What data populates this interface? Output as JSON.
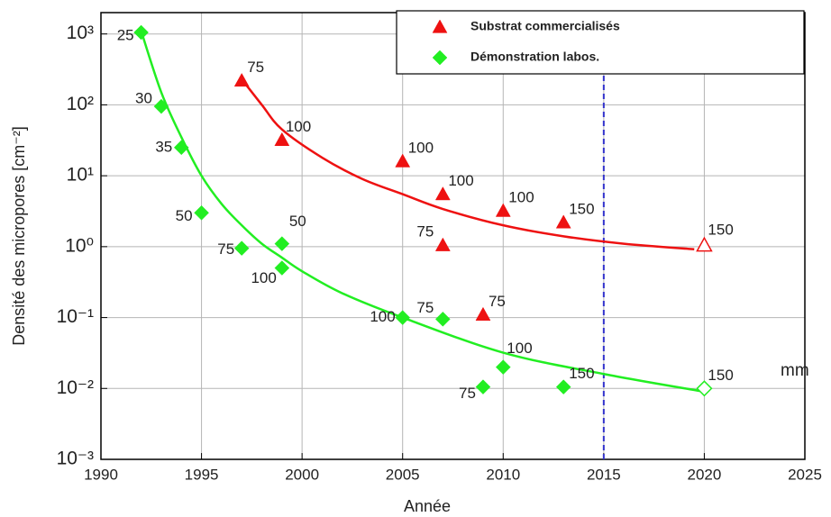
{
  "chart_data": {
    "type": "scatter",
    "x_label": "Année",
    "y_label": "Densité des micropores [cm⁻²]",
    "log_y": true,
    "grid": true,
    "legend": "top-right",
    "xlim": [
      1990,
      2025
    ],
    "ylim": [
      0.001,
      2000
    ],
    "xticks": [
      1990,
      1995,
      2000,
      2005,
      2010,
      2015,
      2020,
      2025
    ],
    "yticks": [
      {
        "value": 0.001,
        "label": "10⁻³"
      },
      {
        "value": 0.01,
        "label": "10⁻²"
      },
      {
        "value": 0.1,
        "label": "10⁻¹"
      },
      {
        "value": 1,
        "label": "10⁰"
      },
      {
        "value": 10,
        "label": "10¹"
      },
      {
        "value": 100,
        "label": "10²"
      },
      {
        "value": 1000,
        "label": "10³"
      }
    ],
    "series": [
      {
        "name": "Substrat commercialisés",
        "color": "#ee1111",
        "marker": "triangle",
        "x": [
          1997,
          1999,
          2005,
          2007,
          2007,
          2009,
          2010,
          2013,
          2020
        ],
        "values": [
          220,
          32,
          16,
          5.5,
          1.05,
          0.11,
          3.2,
          2.2,
          1.05
        ],
        "point_labels": [
          75,
          100,
          100,
          100,
          75,
          75,
          100,
          150,
          150
        ],
        "open_markers": [
          false,
          false,
          false,
          false,
          false,
          false,
          false,
          false,
          true
        ]
      },
      {
        "name": "Démonstration labos.",
        "color": "#22ee22",
        "marker": "diamond",
        "x": [
          1992,
          1993,
          1994,
          1995,
          1997,
          1999,
          1999,
          2005,
          2007,
          2009,
          2010,
          2013,
          2020
        ],
        "values": [
          1050,
          95,
          25,
          3,
          0.95,
          1.1,
          0.5,
          0.1,
          0.095,
          0.0105,
          0.02,
          0.0105,
          0.01
        ],
        "point_labels": [
          25,
          30,
          35,
          50,
          75,
          50,
          100,
          100,
          75,
          75,
          100,
          150,
          150
        ],
        "open_markers": [
          false,
          false,
          false,
          false,
          false,
          false,
          false,
          false,
          false,
          false,
          false,
          false,
          true
        ]
      }
    ],
    "fits": [
      {
        "color": "#ee1111",
        "x": [
          1997,
          1998,
          1999,
          2001,
          2003,
          2005,
          2007,
          2010,
          2013,
          2016,
          2019.5
        ],
        "values": [
          230,
          100,
          45,
          18,
          9,
          5.5,
          3.4,
          2,
          1.4,
          1.1,
          0.92
        ]
      },
      {
        "color": "#22ee22",
        "x": [
          1992,
          1993,
          1994,
          1995,
          1996,
          1997,
          1998,
          1999,
          2000,
          2002,
          2005,
          2010,
          2015,
          2020
        ],
        "values": [
          1100,
          150,
          35,
          10,
          4,
          2,
          1.1,
          0.7,
          0.45,
          0.22,
          0.1,
          0.032,
          0.016,
          0.009
        ]
      }
    ],
    "vline": {
      "x": 2015,
      "color": "#3333cc"
    },
    "annotation": "mm"
  }
}
